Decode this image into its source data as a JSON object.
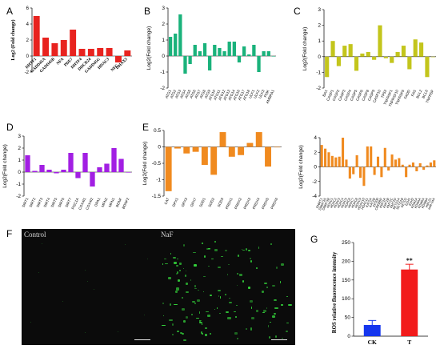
{
  "panel_letters": {
    "A": "A",
    "B": "B",
    "C": "C",
    "D": "D",
    "E": "E",
    "F": "F",
    "G": "G"
  },
  "colors": {
    "A": "#e8231f",
    "B": "#1ab27b",
    "C": "#c3c51c",
    "D": "#a21fe3",
    "E": "#f08a1f",
    "F": "#f08a1f",
    "G_ck": "#1536ee",
    "G_t": "#f21b1b",
    "fluor": "#33d23a"
  },
  "micro": {
    "control_label": "Control",
    "naf_label": "NaF"
  },
  "chart_data": [
    {
      "id": "A",
      "type": "bar",
      "ylabel": "Log2 (Fold change)",
      "ylim": [
        -2,
        6
      ],
      "yticks": [
        -2,
        0,
        2,
        4,
        6
      ],
      "categories": [
        "DHTF1",
        "GADD45A",
        "GADD45B",
        "NFA",
        "PDE7",
        "DHTF4",
        "DHCR24",
        "GADD45G",
        "HDAC3",
        "NFC",
        "DHAX5"
      ],
      "values": [
        5.0,
        2.3,
        1.6,
        2.0,
        3.3,
        0.9,
        0.9,
        1.0,
        1.0,
        -0.8,
        0.7
      ]
    },
    {
      "id": "B",
      "type": "bar",
      "ylabel": "Log2(Fold change)",
      "ylim": [
        -2,
        3
      ],
      "yticks": [
        -2,
        -1,
        0,
        1,
        2,
        3
      ],
      "categories": [
        "ATG1",
        "ATG2",
        "ATG3",
        "ATG4",
        "ATG5",
        "ATG6",
        "ATG7",
        "ATG8",
        "ATG9",
        "ATG10",
        "ATG11",
        "ATG12",
        "ATG13",
        "ATG14",
        "ATG16",
        "ATG17",
        "ATG18",
        "ULK1",
        "ULK2",
        "ULK3",
        "PI3K",
        "AMBRA1"
      ],
      "values": [
        1.2,
        1.4,
        2.6,
        -1.1,
        -0.5,
        0.7,
        0.3,
        0.8,
        -0.9,
        0.7,
        0.5,
        0.3,
        0.9,
        0.9,
        -0.4,
        0.6,
        0.1,
        0.7,
        -1.0,
        0.3,
        0.3,
        0.0
      ]
    },
    {
      "id": "C",
      "type": "bar",
      "ylabel": "Log2(Fold change)",
      "ylim": [
        -2,
        3
      ],
      "yticks": [
        -2,
        -1,
        0,
        1,
        2,
        3
      ],
      "categories": [
        "BAX",
        "CASP1",
        "CASP2",
        "CASP3",
        "CASP4",
        "CASP5",
        "CASP6",
        "CASP8",
        "CASP9",
        "CASP10",
        "TP53",
        "TNFRSF1",
        "TNFRSF10",
        "TNFRSF6",
        "FADD",
        "FAS",
        "BCL2",
        "BCL6",
        "TNFRSF"
      ],
      "values": [
        -1.3,
        1.0,
        -0.6,
        0.7,
        0.8,
        -0.9,
        0.2,
        0.3,
        -0.2,
        2.0,
        -0.1,
        -0.4,
        0.3,
        0.7,
        -0.8,
        1.1,
        0.9,
        -1.3,
        0.0
      ]
    },
    {
      "id": "D",
      "type": "bar",
      "ylabel": "Log2(Fold change)",
      "ylim": [
        -2,
        3
      ],
      "yticks": [
        -2,
        -1,
        0,
        1,
        2,
        3
      ],
      "categories": [
        "SIRT1",
        "SIRT2",
        "SIRT3",
        "SIRT4",
        "SIRT5",
        "SIRT6",
        "SIRT7",
        "PGC1A",
        "COX4I1",
        "COX4I2",
        "OPA1",
        "MFN2",
        "MFN1",
        "BDNF",
        "BDNF2"
      ],
      "values": [
        1.4,
        0.1,
        0.6,
        0.2,
        -0.1,
        0.2,
        1.6,
        -0.5,
        1.6,
        -1.2,
        0.4,
        0.7,
        2.0,
        1.1,
        0.0
      ]
    },
    {
      "id": "E",
      "type": "bar",
      "ylabel": "Log2(Fold change)",
      "ylim": [
        -1.5,
        0.5
      ],
      "yticks": [
        -1.5,
        -1.0,
        -0.5,
        0.0,
        0.5
      ],
      "categories": [
        "CAT",
        "GPX1",
        "GPX3",
        "GPX7",
        "SOD1",
        "SOD2",
        "SOD3",
        "PRDX1",
        "PRDX2",
        "PRDX3",
        "PRDX4",
        "PRDX5",
        "PRDX6"
      ],
      "values": [
        -1.35,
        -0.05,
        -0.2,
        -0.15,
        -0.55,
        -0.85,
        0.45,
        -0.3,
        -0.25,
        0.12,
        0.45,
        -0.6,
        0.0
      ]
    },
    {
      "id": "F",
      "type": "bar",
      "ylabel": "Log2(Fold change)",
      "ylim": [
        -4,
        4
      ],
      "yticks": [
        -4,
        -2,
        0,
        2,
        4
      ],
      "categories": [
        "DNMT1",
        "DNMT3A",
        "DNMT3B",
        "HDAC1",
        "HDAC2",
        "HDAC3",
        "HDAC4",
        "HDAC5",
        "HDAC6",
        "HDAC7",
        "HDAC8",
        "HDAC9",
        "HDAC10",
        "HDAC11",
        "KAT2A",
        "KAT2B",
        "EP300",
        "CREBBP",
        "KMT2A",
        "KMT2B",
        "KMT2C",
        "KMT2D",
        "SETD1A",
        "SETD1B",
        "SETD2",
        "EZH1",
        "EZH2",
        "KDM1A",
        "KDM4A",
        "KDM5A",
        "KDM6A",
        "miR-21",
        "miR-34A"
      ],
      "values": [
        3.0,
        2.5,
        2.0,
        1.5,
        1.3,
        1.4,
        4.0,
        1.0,
        -1.6,
        -1.0,
        1.6,
        -1.5,
        -2.6,
        2.8,
        2.8,
        -1.1,
        1.4,
        -1.4,
        2.6,
        -0.5,
        1.7,
        1.0,
        1.2,
        0.3,
        -1.4,
        0.3,
        0.6,
        -0.6,
        0.5,
        -0.4,
        0.2,
        0.6,
        0.9
      ]
    },
    {
      "id": "G",
      "type": "bar",
      "ylabel": "ROS relative fluorescence intensity",
      "ylim": [
        0,
        250
      ],
      "yticks": [
        0,
        50,
        100,
        150,
        200,
        250
      ],
      "categories": [
        "CK",
        "T"
      ],
      "values": [
        30,
        178
      ],
      "errors": [
        12,
        14
      ],
      "annotation": "**"
    }
  ]
}
